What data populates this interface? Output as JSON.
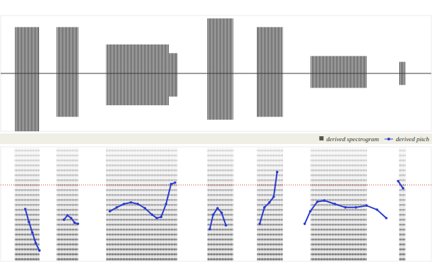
{
  "chart_data": {
    "type": "line",
    "tick_labels": false,
    "legend": "top-right",
    "xlim": [
      0,
      2
    ],
    "ylim": [
      50,
      350
    ],
    "reference_line": 250,
    "waveform": {
      "ylim": [
        -1,
        1
      ],
      "color": "#3a3a3a",
      "bursts": [
        {
          "start": 0.065,
          "end": 0.18,
          "top": 0.8,
          "bottom": -1.0
        },
        {
          "start": 0.26,
          "end": 0.36,
          "top": 0.8,
          "bottom": -0.75
        },
        {
          "start": 0.49,
          "end": 0.78,
          "top": 0.5,
          "bottom": -0.55
        },
        {
          "start": 0.78,
          "end": 0.82,
          "top": 0.35,
          "bottom": -0.4
        },
        {
          "start": 0.96,
          "end": 1.08,
          "top": 0.95,
          "bottom": -0.8
        },
        {
          "start": 1.19,
          "end": 1.31,
          "top": 0.8,
          "bottom": -0.75
        },
        {
          "start": 1.44,
          "end": 1.7,
          "top": 0.3,
          "bottom": -0.25
        },
        {
          "start": 1.85,
          "end": 1.88,
          "top": 0.2,
          "bottom": -0.2
        }
      ]
    },
    "spectrogram": {
      "name": "derived spectrogram",
      "color": "#555555"
    },
    "series": [
      {
        "name": "derived pitch",
        "color": "#2b3bd0",
        "marker": "circle",
        "x": [
          0.114,
          0.131,
          0.147,
          0.163,
          0.18,
          0.24,
          0.294,
          0.31,
          0.327,
          0.343,
          0.359,
          0.43,
          0.507,
          0.539,
          0.572,
          0.605,
          0.637,
          0.67,
          0.703,
          0.725,
          0.745,
          0.768,
          0.791,
          0.81,
          0.9,
          0.971,
          0.987,
          1.007,
          1.026,
          1.046,
          1.12,
          1.203,
          1.225,
          1.248,
          1.268,
          1.284,
          1.35,
          1.412,
          1.438,
          1.471,
          1.503,
          1.552,
          1.601,
          1.65,
          1.699,
          1.748,
          1.791,
          1.82,
          1.846,
          1.869
        ],
        "values": [
          187,
          153,
          125,
          97,
          78,
          null,
          159,
          170,
          163,
          151,
          148,
          null,
          181,
          191,
          200,
          204,
          200,
          189,
          172,
          163,
          166,
          200,
          252,
          256,
          null,
          134,
          172,
          189,
          177,
          144,
          null,
          148,
          191,
          204,
          219,
          284,
          null,
          148,
          181,
          206,
          209,
          200,
          191,
          191,
          196,
          185,
          163,
          null,
          260,
          241
        ]
      }
    ]
  }
}
